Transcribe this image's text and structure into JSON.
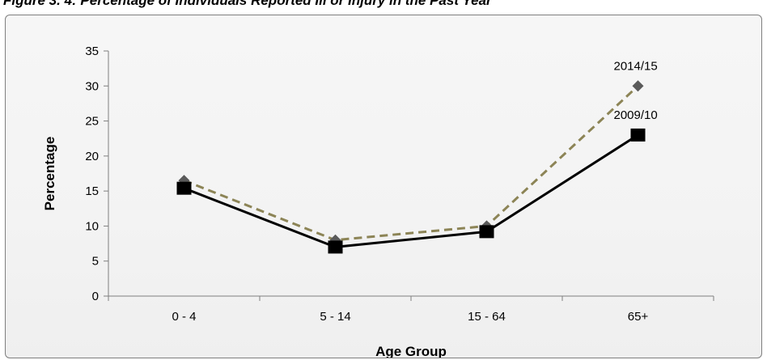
{
  "figure": {
    "title": "Figure 3. 4: Percentage of Individuals Reported Ill or Injury in the Past Year"
  },
  "chart_data": {
    "type": "line",
    "title": "Figure 3. 4: Percentage of Individuals Reported Ill or Injury in the Past Year",
    "xlabel": "Age Group",
    "ylabel": "Percentage",
    "categories": [
      "0 - 4",
      "5 - 14",
      "15 - 64",
      "65+"
    ],
    "ylim": [
      0,
      35
    ],
    "yticks": [
      0,
      5,
      10,
      15,
      20,
      25,
      30,
      35
    ],
    "grid": false,
    "series": [
      {
        "name": "2014/15",
        "values": [
          16.5,
          8.0,
          10.0,
          30.0
        ],
        "color": "#8c8456",
        "line_style": "dashed",
        "marker": "diamond",
        "marker_color": "#5a5a5a"
      },
      {
        "name": "2009/10",
        "values": [
          15.4,
          7.0,
          9.2,
          23.0
        ],
        "color": "#000000",
        "line_style": "solid",
        "marker": "square",
        "marker_color": "#000000"
      }
    ]
  }
}
